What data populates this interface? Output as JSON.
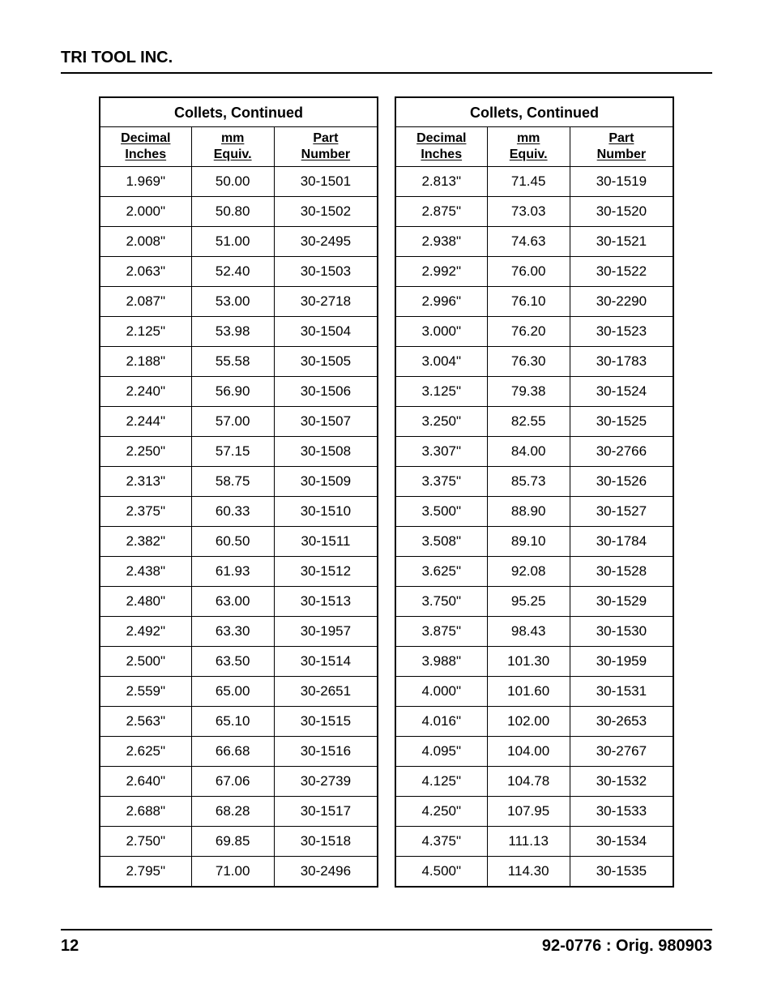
{
  "header": {
    "company": "TRI TOOL INC."
  },
  "footer": {
    "page_number": "12",
    "doc_ref": "92-0776 : Orig. 980903"
  },
  "tables": {
    "left": {
      "title": "Collets, Continued",
      "columns": {
        "decimal": "Decimal\nInches",
        "mm": "mm\nEquiv.",
        "part": "Part\nNumber"
      },
      "rows": [
        {
          "decimal": "1.969\"",
          "mm": "50.00",
          "part": "30-1501"
        },
        {
          "decimal": "2.000\"",
          "mm": "50.80",
          "part": "30-1502"
        },
        {
          "decimal": "2.008\"",
          "mm": "51.00",
          "part": "30-2495"
        },
        {
          "decimal": "2.063\"",
          "mm": "52.40",
          "part": "30-1503"
        },
        {
          "decimal": "2.087\"",
          "mm": "53.00",
          "part": "30-2718"
        },
        {
          "decimal": "2.125\"",
          "mm": "53.98",
          "part": "30-1504"
        },
        {
          "decimal": "2.188\"",
          "mm": "55.58",
          "part": "30-1505"
        },
        {
          "decimal": "2.240\"",
          "mm": "56.90",
          "part": "30-1506"
        },
        {
          "decimal": "2.244\"",
          "mm": "57.00",
          "part": "30-1507"
        },
        {
          "decimal": "2.250\"",
          "mm": "57.15",
          "part": "30-1508"
        },
        {
          "decimal": "2.313\"",
          "mm": "58.75",
          "part": "30-1509"
        },
        {
          "decimal": "2.375\"",
          "mm": "60.33",
          "part": "30-1510"
        },
        {
          "decimal": "2.382\"",
          "mm": "60.50",
          "part": "30-1511"
        },
        {
          "decimal": "2.438\"",
          "mm": "61.93",
          "part": "30-1512"
        },
        {
          "decimal": "2.480\"",
          "mm": "63.00",
          "part": "30-1513"
        },
        {
          "decimal": "2.492\"",
          "mm": "63.30",
          "part": "30-1957"
        },
        {
          "decimal": "2.500\"",
          "mm": "63.50",
          "part": "30-1514"
        },
        {
          "decimal": "2.559\"",
          "mm": "65.00",
          "part": "30-2651"
        },
        {
          "decimal": "2.563\"",
          "mm": "65.10",
          "part": "30-1515"
        },
        {
          "decimal": "2.625\"",
          "mm": "66.68",
          "part": "30-1516"
        },
        {
          "decimal": "2.640\"",
          "mm": "67.06",
          "part": "30-2739"
        },
        {
          "decimal": "2.688\"",
          "mm": "68.28",
          "part": "30-1517"
        },
        {
          "decimal": "2.750\"",
          "mm": "69.85",
          "part": "30-1518"
        },
        {
          "decimal": "2.795\"",
          "mm": "71.00",
          "part": "30-2496"
        }
      ]
    },
    "right": {
      "title": "Collets, Continued",
      "columns": {
        "decimal": "Decimal\nInches",
        "mm": "mm\nEquiv.",
        "part": "Part\nNumber"
      },
      "rows": [
        {
          "decimal": "2.813\"",
          "mm": "71.45",
          "part": "30-1519"
        },
        {
          "decimal": "2.875\"",
          "mm": "73.03",
          "part": "30-1520"
        },
        {
          "decimal": "2.938\"",
          "mm": "74.63",
          "part": "30-1521"
        },
        {
          "decimal": "2.992\"",
          "mm": "76.00",
          "part": "30-1522"
        },
        {
          "decimal": "2.996\"",
          "mm": "76.10",
          "part": "30-2290"
        },
        {
          "decimal": "3.000\"",
          "mm": "76.20",
          "part": "30-1523"
        },
        {
          "decimal": "3.004\"",
          "mm": "76.30",
          "part": "30-1783"
        },
        {
          "decimal": "3.125\"",
          "mm": "79.38",
          "part": "30-1524"
        },
        {
          "decimal": "3.250\"",
          "mm": "82.55",
          "part": "30-1525"
        },
        {
          "decimal": "3.307\"",
          "mm": "84.00",
          "part": "30-2766"
        },
        {
          "decimal": "3.375\"",
          "mm": "85.73",
          "part": "30-1526"
        },
        {
          "decimal": "3.500\"",
          "mm": "88.90",
          "part": "30-1527"
        },
        {
          "decimal": "3.508\"",
          "mm": "89.10",
          "part": "30-1784"
        },
        {
          "decimal": "3.625\"",
          "mm": "92.08",
          "part": "30-1528"
        },
        {
          "decimal": "3.750\"",
          "mm": "95.25",
          "part": "30-1529"
        },
        {
          "decimal": "3.875\"",
          "mm": "98.43",
          "part": "30-1530"
        },
        {
          "decimal": "3.988\"",
          "mm": "101.30",
          "part": "30-1959"
        },
        {
          "decimal": "4.000\"",
          "mm": "101.60",
          "part": "30-1531"
        },
        {
          "decimal": "4.016\"",
          "mm": "102.00",
          "part": "30-2653"
        },
        {
          "decimal": "4.095\"",
          "mm": "104.00",
          "part": "30-2767"
        },
        {
          "decimal": "4.125\"",
          "mm": "104.78",
          "part": "30-1532"
        },
        {
          "decimal": "4.250\"",
          "mm": "107.95",
          "part": "30-1533"
        },
        {
          "decimal": "4.375\"",
          "mm": "111.13",
          "part": "30-1534"
        },
        {
          "decimal": "4.500\"",
          "mm": "114.30",
          "part": "30-1535"
        }
      ]
    }
  }
}
